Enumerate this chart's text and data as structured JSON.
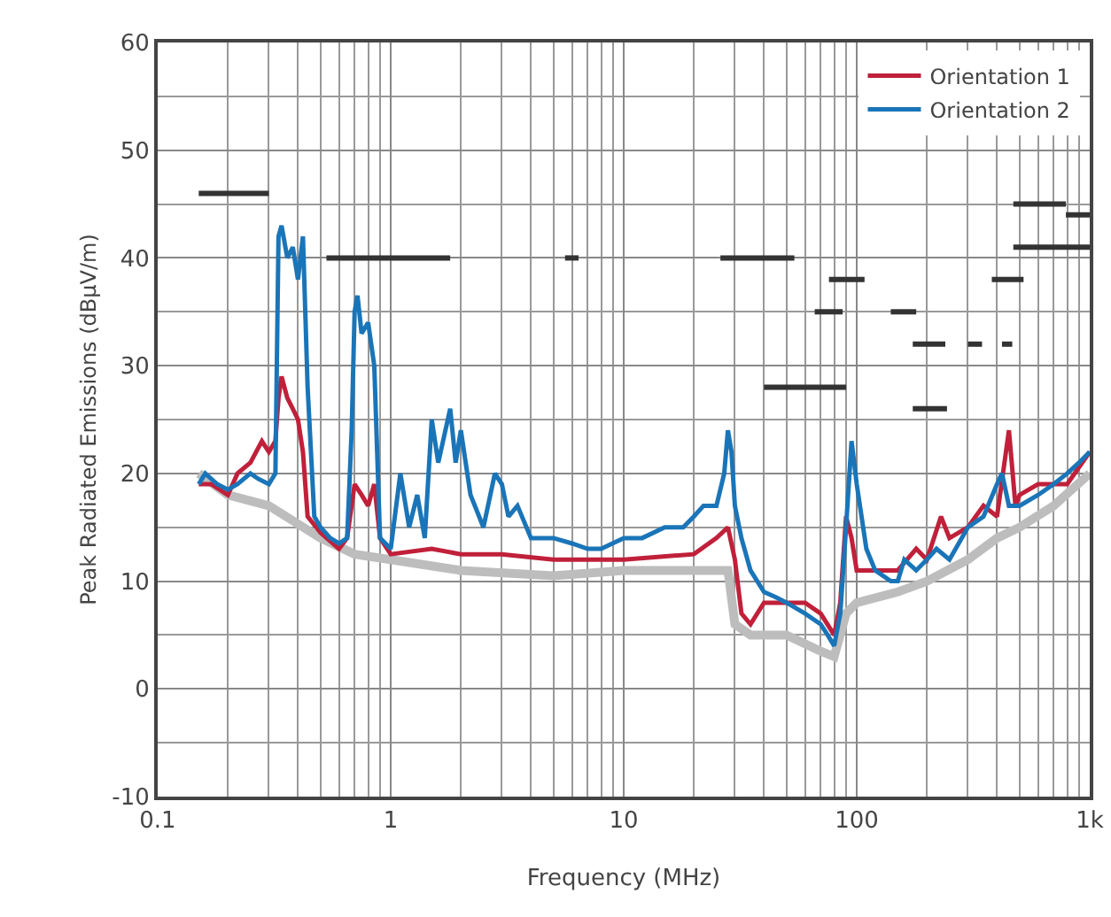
{
  "chart_data": {
    "type": "line",
    "xlabel": "Frequency (MHz)",
    "ylabel": "Peak Radiated Emissions (dBµV/m)",
    "log": "x",
    "xlim": [
      0.1,
      1000
    ],
    "xticks": [
      0.1,
      1,
      10,
      100,
      {
        "value": 1000,
        "label": "1k"
      }
    ],
    "ylim": [
      -10,
      60
    ],
    "yticks": [
      -10,
      0,
      10,
      20,
      30,
      40,
      50,
      60
    ],
    "grid": true,
    "legend": "top right",
    "marker": "none",
    "line_style": "solid",
    "series": [
      {
        "color": "#bdbdbd",
        "x": [
          0.15,
          0.2,
          0.3,
          0.5,
          0.7,
          1,
          2,
          5,
          10,
          20,
          28,
          30,
          35,
          50,
          70,
          80,
          90,
          100,
          150,
          200,
          300,
          400,
          500,
          700,
          1000
        ],
        "values": [
          20,
          18,
          17,
          14,
          12.5,
          12,
          11,
          10.5,
          11,
          11,
          11,
          6,
          5,
          5,
          3.5,
          3,
          7,
          8,
          9,
          10,
          12,
          14,
          15,
          17,
          20
        ]
      },
      {
        "name": "Orientation 1",
        "color": "#c0203a",
        "x": [
          0.15,
          0.17,
          0.2,
          0.22,
          0.25,
          0.28,
          0.3,
          0.32,
          0.33,
          0.34,
          0.36,
          0.38,
          0.4,
          0.42,
          0.44,
          0.5,
          0.6,
          0.65,
          0.7,
          0.75,
          0.8,
          0.85,
          0.9,
          1,
          1.5,
          2,
          3,
          5,
          10,
          20,
          25,
          28,
          30,
          32,
          35,
          40,
          50,
          60,
          70,
          80,
          85,
          90,
          95,
          100,
          120,
          150,
          180,
          200,
          230,
          250,
          300,
          350,
          400,
          450,
          480,
          500,
          600,
          800,
          1000
        ],
        "values": [
          19,
          19,
          18,
          20,
          21,
          23,
          22,
          23,
          27,
          29,
          27,
          26,
          25,
          22,
          16,
          14.5,
          13,
          14,
          19,
          18,
          17,
          19,
          14,
          12.5,
          13,
          12.5,
          12.5,
          12,
          12,
          12.5,
          14,
          15,
          12,
          7,
          6,
          8,
          8,
          8,
          7,
          5,
          8,
          16,
          14,
          11,
          11,
          11,
          13,
          12,
          16,
          14,
          15,
          17,
          16,
          24,
          17,
          18,
          19,
          19,
          22
        ]
      },
      {
        "name": "Orientation 2",
        "color": "#1a75b8",
        "x": [
          0.15,
          0.16,
          0.18,
          0.2,
          0.22,
          0.25,
          0.27,
          0.3,
          0.32,
          0.33,
          0.34,
          0.36,
          0.38,
          0.4,
          0.42,
          0.44,
          0.47,
          0.5,
          0.55,
          0.6,
          0.65,
          0.68,
          0.7,
          0.72,
          0.75,
          0.8,
          0.85,
          0.9,
          1,
          1.1,
          1.2,
          1.3,
          1.4,
          1.5,
          1.6,
          1.8,
          1.9,
          2,
          2.2,
          2.5,
          2.8,
          3,
          3.2,
          3.5,
          4,
          5,
          6,
          7,
          8,
          10,
          12,
          15,
          18,
          20,
          22,
          25,
          27,
          28,
          29,
          30,
          32,
          35,
          40,
          45,
          50,
          60,
          70,
          75,
          80,
          85,
          90,
          95,
          100,
          110,
          120,
          140,
          150,
          160,
          180,
          200,
          220,
          250,
          300,
          350,
          400,
          420,
          450,
          500,
          600,
          700,
          800,
          900,
          1000
        ],
        "values": [
          19,
          20,
          19,
          18.5,
          19,
          20,
          19.5,
          19,
          20,
          42,
          43,
          40,
          41,
          38,
          42,
          28,
          16,
          15,
          14,
          13.5,
          14,
          24,
          35,
          36.5,
          33,
          34,
          30,
          14,
          13,
          20,
          15,
          18,
          14,
          25,
          21,
          26,
          21,
          24,
          18,
          15,
          20,
          19,
          16,
          17,
          14,
          14,
          13.5,
          13,
          13,
          14,
          14,
          15,
          15,
          16,
          17,
          17,
          20,
          24,
          22,
          17,
          14,
          11,
          9,
          8.5,
          8,
          7,
          6,
          5,
          4,
          7,
          15,
          23,
          19,
          13,
          11,
          10,
          10,
          12,
          11,
          12,
          13,
          12,
          15,
          16,
          19,
          20,
          17,
          17,
          18,
          19,
          20,
          21,
          22
        ]
      },
      {
        "color": "#333333",
        "x": [
          0.15,
          0.3,
          null,
          0.53,
          1.8,
          null,
          5.6,
          6.4,
          null,
          26,
          54,
          null,
          40,
          90,
          null,
          76,
          108,
          null,
          66,
          87,
          null,
          140,
          180,
          null,
          174,
          240,
          null,
          300,
          345,
          null,
          420,
          465,
          null,
          174,
          244,
          null,
          380,
          520,
          null,
          470,
          790,
          null,
          790,
          1000,
          null,
          470,
          1000
        ],
        "values": [
          46,
          46,
          null,
          40,
          40,
          null,
          40,
          40,
          null,
          40,
          40,
          null,
          28,
          28,
          null,
          38,
          38,
          null,
          35,
          35,
          null,
          35,
          35,
          null,
          32,
          32,
          null,
          32,
          32,
          null,
          32,
          32,
          null,
          26,
          26,
          null,
          38,
          38,
          null,
          45,
          45,
          null,
          44,
          44,
          null,
          41,
          41
        ]
      }
    ]
  }
}
